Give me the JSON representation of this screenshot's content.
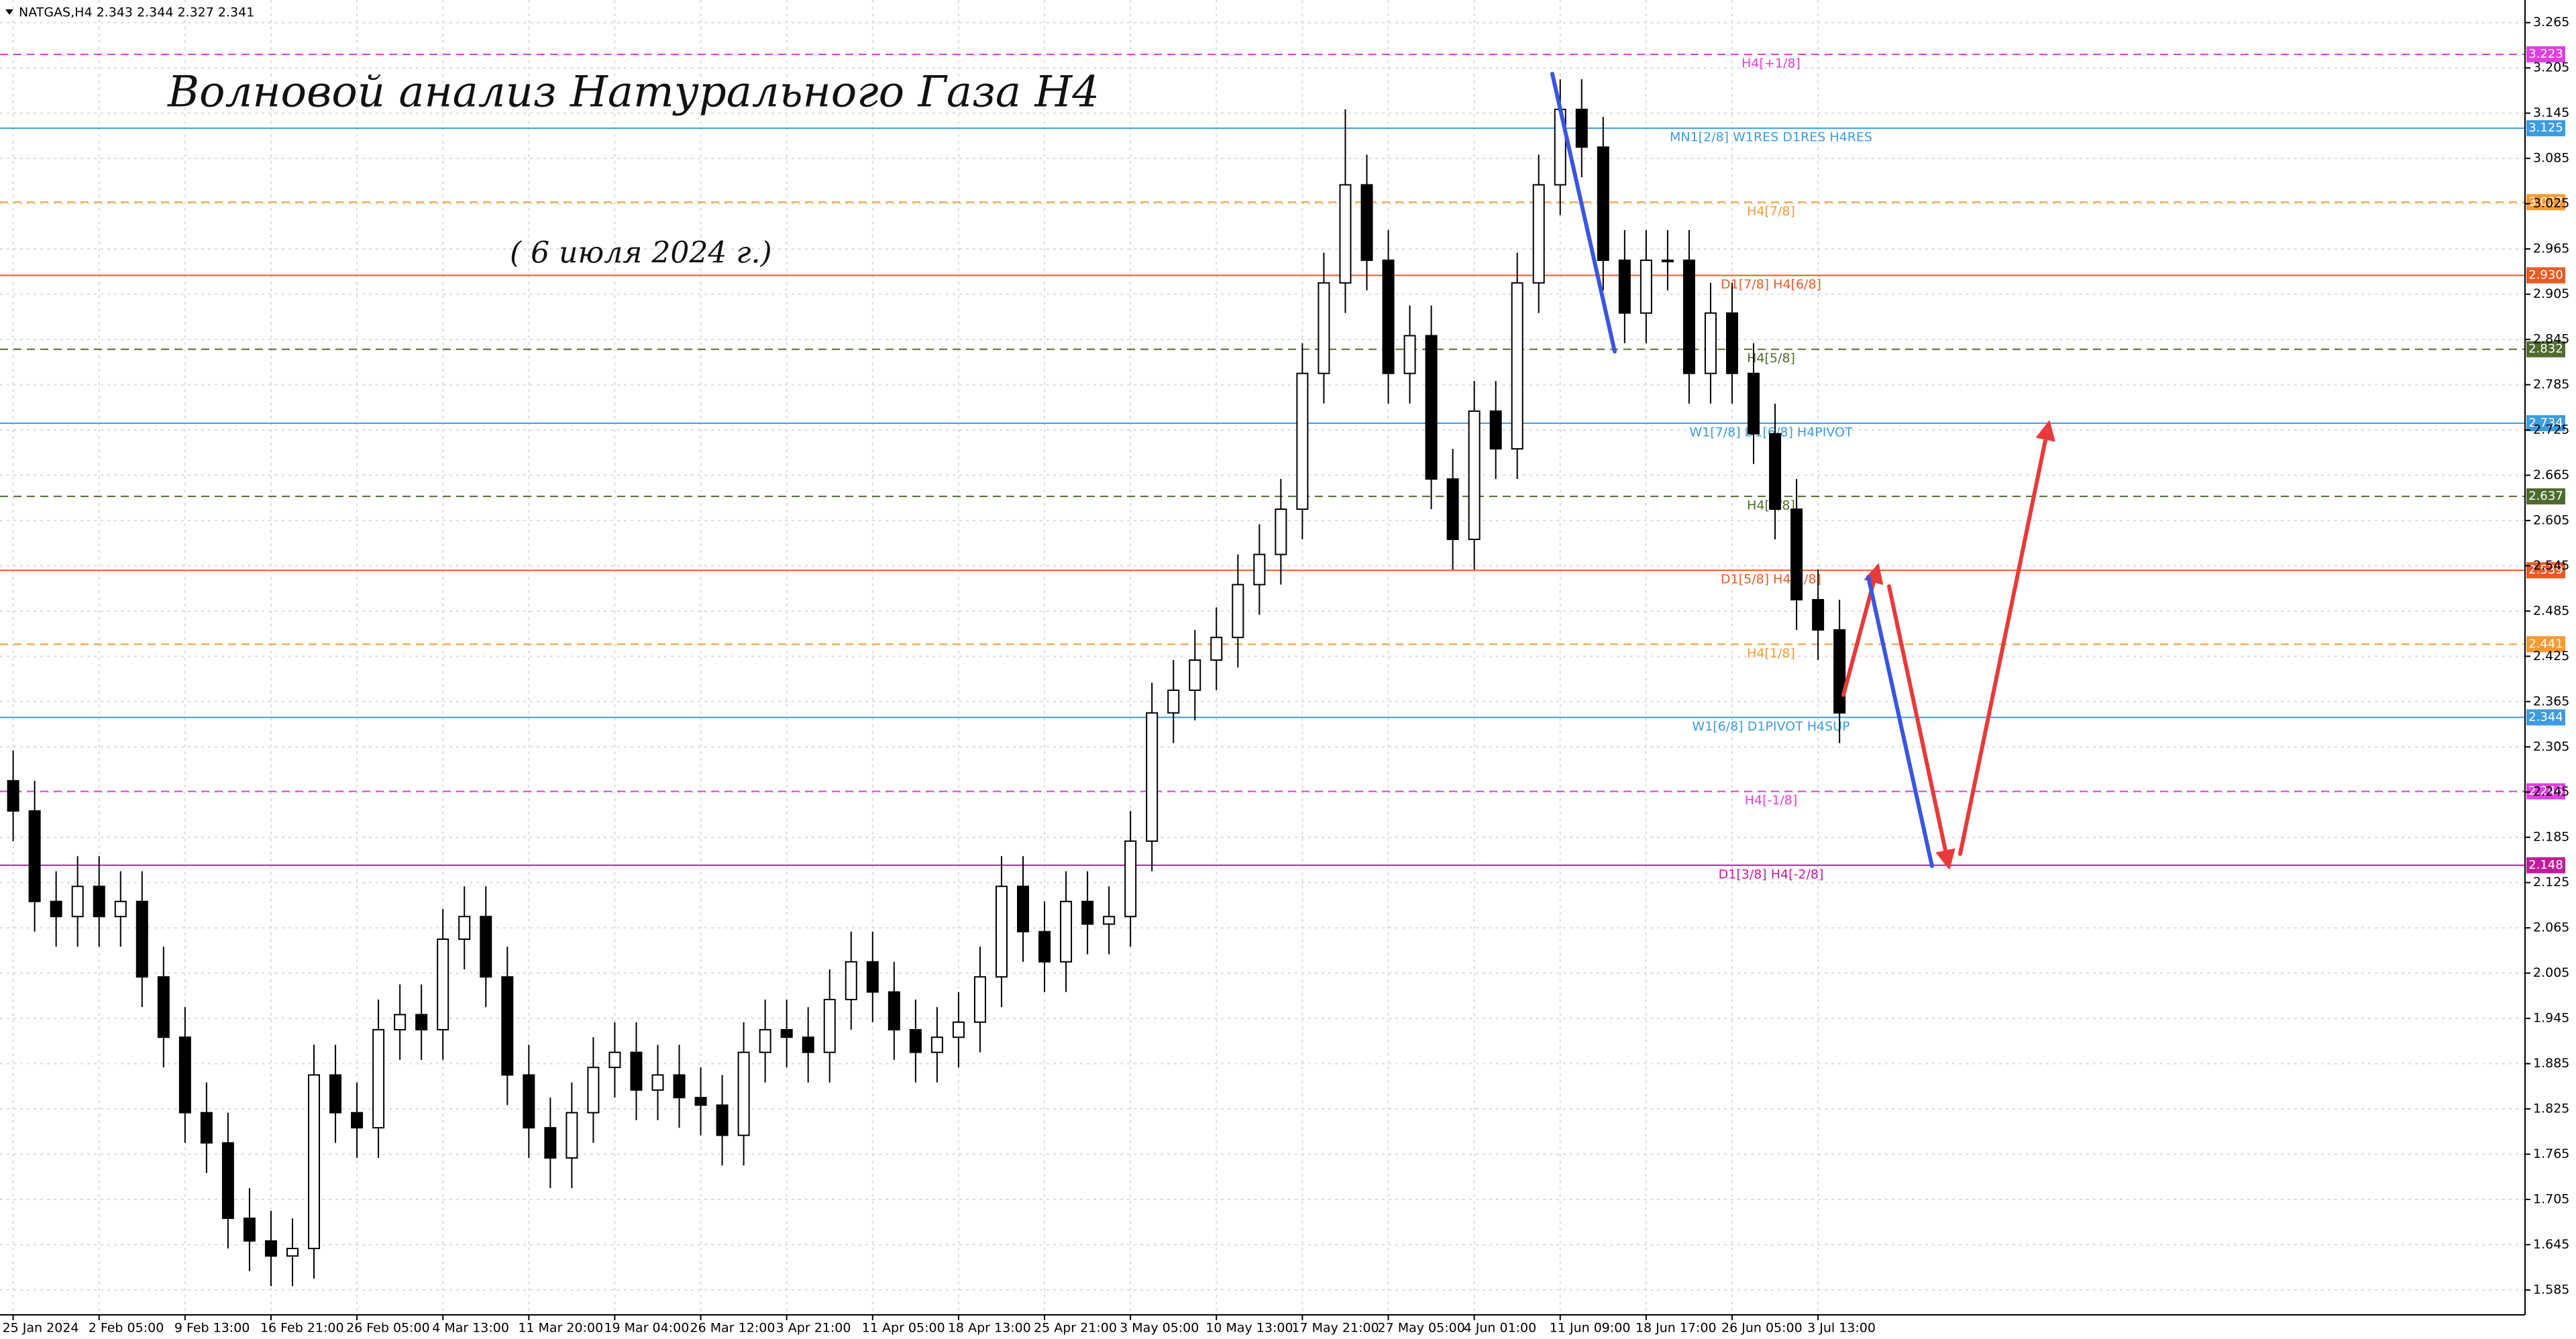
{
  "chart_data": {
    "type": "candlestick",
    "header": "NATGAS,H4  2.343 2.344 2.327 2.341",
    "title": "Волновой анализ Натурального Газа H4",
    "subtitle": "( 6 июля 2024 г.)",
    "categories": [
      "25 Jan 2024",
      null,
      null,
      null,
      "2 Feb 05:00",
      null,
      null,
      null,
      "9 Feb 13:00",
      null,
      null,
      null,
      "16 Feb 21:00",
      null,
      null,
      null,
      "26 Feb 05:00",
      null,
      null,
      null,
      "4 Mar 13:00",
      null,
      null,
      null,
      "11 Mar 20:00",
      null,
      null,
      null,
      "19 Mar 04:00",
      null,
      null,
      null,
      "26 Mar 12:00",
      null,
      null,
      null,
      "3 Apr 21:00",
      null,
      null,
      null,
      "11 Apr 05:00",
      null,
      null,
      null,
      "18 Apr 13:00",
      null,
      null,
      null,
      "25 Apr 21:00",
      null,
      null,
      null,
      "3 May 05:00",
      null,
      null,
      null,
      "10 May 13:00",
      null,
      null,
      null,
      "17 May 21:00",
      null,
      null,
      null,
      "27 May 05:00",
      null,
      null,
      null,
      "4 Jun 01:00",
      null,
      null,
      null,
      "11 Jun 09:00",
      null,
      null,
      null,
      "18 Jun 17:00",
      null,
      null,
      null,
      "26 Jun 05:00",
      null,
      null,
      null,
      "3 Jul 13:00",
      null
    ],
    "open": [
      2.26,
      2.22,
      2.1,
      2.08,
      2.12,
      2.08,
      2.1,
      2.0,
      1.92,
      1.82,
      1.78,
      1.68,
      1.65,
      1.63,
      1.64,
      1.87,
      1.82,
      1.8,
      1.93,
      1.95,
      1.93,
      2.05,
      2.08,
      2.0,
      1.87,
      1.8,
      1.76,
      1.82,
      1.88,
      1.9,
      1.85,
      1.87,
      1.84,
      1.83,
      1.79,
      1.9,
      1.93,
      1.92,
      1.9,
      1.97,
      2.02,
      1.98,
      1.93,
      1.9,
      1.92,
      1.94,
      2.0,
      2.12,
      2.06,
      2.02,
      2.1,
      2.07,
      2.08,
      2.18,
      2.35,
      2.38,
      2.42,
      2.45,
      2.52,
      2.56,
      2.62,
      2.8,
      2.92,
      3.05,
      2.95,
      2.8,
      2.85,
      2.66,
      2.58,
      2.75,
      2.7,
      2.92,
      3.05,
      3.15,
      3.1,
      2.95,
      2.88,
      2.95,
      2.95,
      2.8,
      2.88,
      2.8,
      2.72,
      2.62,
      2.5,
      2.46
    ],
    "high": [
      2.3,
      2.26,
      2.14,
      2.16,
      2.16,
      2.14,
      2.14,
      2.04,
      1.96,
      1.86,
      1.82,
      1.72,
      1.69,
      1.68,
      1.91,
      1.91,
      1.86,
      1.97,
      1.99,
      1.99,
      2.09,
      2.12,
      2.12,
      2.04,
      1.91,
      1.84,
      1.86,
      1.92,
      1.94,
      1.94,
      1.91,
      1.91,
      1.88,
      1.87,
      1.94,
      1.97,
      1.97,
      1.96,
      2.01,
      2.06,
      2.06,
      2.02,
      1.97,
      1.96,
      1.98,
      2.04,
      2.16,
      2.16,
      2.1,
      2.14,
      2.14,
      2.12,
      2.22,
      2.39,
      2.42,
      2.46,
      2.49,
      2.56,
      2.6,
      2.66,
      2.84,
      2.96,
      3.15,
      3.09,
      2.99,
      2.89,
      2.89,
      2.7,
      2.79,
      2.79,
      2.96,
      3.09,
      3.19,
      3.19,
      3.14,
      2.99,
      2.99,
      2.99,
      2.99,
      2.92,
      2.92,
      2.84,
      2.76,
      2.66,
      2.54,
      2.5
    ],
    "low": [
      2.18,
      2.06,
      2.04,
      2.04,
      2.04,
      2.04,
      1.96,
      1.88,
      1.78,
      1.74,
      1.64,
      1.61,
      1.59,
      1.59,
      1.6,
      1.78,
      1.76,
      1.76,
      1.89,
      1.89,
      1.89,
      2.01,
      1.96,
      1.83,
      1.76,
      1.72,
      1.72,
      1.78,
      1.84,
      1.81,
      1.81,
      1.8,
      1.79,
      1.75,
      1.75,
      1.86,
      1.88,
      1.86,
      1.86,
      1.93,
      1.94,
      1.89,
      1.86,
      1.86,
      1.88,
      1.9,
      1.96,
      2.02,
      1.98,
      1.98,
      2.03,
      2.03,
      2.04,
      2.14,
      2.31,
      2.34,
      2.38,
      2.41,
      2.48,
      2.52,
      2.58,
      2.76,
      2.88,
      2.91,
      2.76,
      2.76,
      2.62,
      2.54,
      2.54,
      2.66,
      2.66,
      2.88,
      3.01,
      3.06,
      2.91,
      2.84,
      2.84,
      2.91,
      2.76,
      2.76,
      2.76,
      2.68,
      2.58,
      2.46,
      2.42,
      2.31
    ],
    "close": [
      2.22,
      2.1,
      2.08,
      2.12,
      2.08,
      2.1,
      2.0,
      1.92,
      1.82,
      1.78,
      1.68,
      1.65,
      1.63,
      1.64,
      1.87,
      1.82,
      1.8,
      1.93,
      1.95,
      1.93,
      2.05,
      2.08,
      2.0,
      1.87,
      1.8,
      1.76,
      1.82,
      1.88,
      1.9,
      1.85,
      1.87,
      1.84,
      1.83,
      1.79,
      1.9,
      1.93,
      1.92,
      1.9,
      1.97,
      2.02,
      1.98,
      1.93,
      1.9,
      1.92,
      1.94,
      2.0,
      2.12,
      2.06,
      2.02,
      2.1,
      2.07,
      2.08,
      2.18,
      2.35,
      2.38,
      2.42,
      2.45,
      2.52,
      2.56,
      2.62,
      2.8,
      2.92,
      3.05,
      2.95,
      2.8,
      2.85,
      2.66,
      2.58,
      2.75,
      2.7,
      2.92,
      3.05,
      3.15,
      3.1,
      2.95,
      2.88,
      2.95,
      2.95,
      2.8,
      2.88,
      2.8,
      2.72,
      2.62,
      2.5,
      2.46,
      2.35
    ],
    "ylim": [
      1.552,
      3.295
    ],
    "yticks": [
      3.265,
      3.205,
      3.145,
      3.085,
      3.025,
      2.965,
      2.905,
      2.845,
      2.785,
      2.725,
      2.665,
      2.605,
      2.545,
      2.485,
      2.425,
      2.365,
      2.305,
      2.245,
      2.185,
      2.125,
      2.065,
      2.005,
      1.945,
      1.885,
      1.825,
      1.765,
      1.705,
      1.645,
      1.585
    ],
    "grid": true,
    "levels": [
      {
        "price": {
          "value": 3.223,
          "label": "3.223"
        },
        "name": "H4[+1/8]",
        "color": "#e23ee2",
        "dashed": true
      },
      {
        "price": {
          "value": 3.125,
          "label": "3.125"
        },
        "name": "MN1[2/8] W1RES D1RES H4RES",
        "color": "#3d9be0",
        "dashed": false
      },
      {
        "price": {
          "value": 3.027,
          "label": "3.027"
        },
        "name": "H4[7/8]",
        "color": "#f59a30",
        "dashed": true
      },
      {
        "price": {
          "value": 2.93,
          "label": "2.930"
        },
        "name": "D1[7/8] H4[6/8]",
        "color": "#ea5a24",
        "dashed": false
      },
      {
        "price": {
          "value": 2.832,
          "label": "2.832"
        },
        "name": "H4[5/8]",
        "color": "#4e6b2e",
        "dashed": true
      },
      {
        "price": {
          "value": 2.734,
          "label": "2.734"
        },
        "name": "W1[7/8] D1[6/8] H4PIVOT",
        "color": "#3d9be0",
        "dashed": false
      },
      {
        "price": {
          "value": 2.637,
          "label": "2.637"
        },
        "name": "H4[3/8]",
        "color": "#4e6b2e",
        "dashed": true
      },
      {
        "price": {
          "value": 2.539,
          "label": "2.539"
        },
        "name": "D1[5/8] H4[2/8]",
        "color": "#ea5a24",
        "dashed": false
      },
      {
        "price": {
          "value": 2.441,
          "label": "2.441"
        },
        "name": "H4[1/8]",
        "color": "#f59a30",
        "dashed": true
      },
      {
        "price": {
          "value": 2.344,
          "label": "2.344"
        },
        "name": "W1[6/8] D1PIVOT H4SUP",
        "color": "#3d9be0",
        "dashed": false
      },
      {
        "price": {
          "value": 2.246,
          "label": "2.246"
        },
        "name": "H4[-1/8]",
        "color": "#e23ee2",
        "dashed": true
      },
      {
        "price": {
          "value": 2.148,
          "label": "2.148"
        },
        "name": "D1[3/8] H4[-2/8]",
        "color": "#c01c9c",
        "dashed": false
      }
    ]
  }
}
